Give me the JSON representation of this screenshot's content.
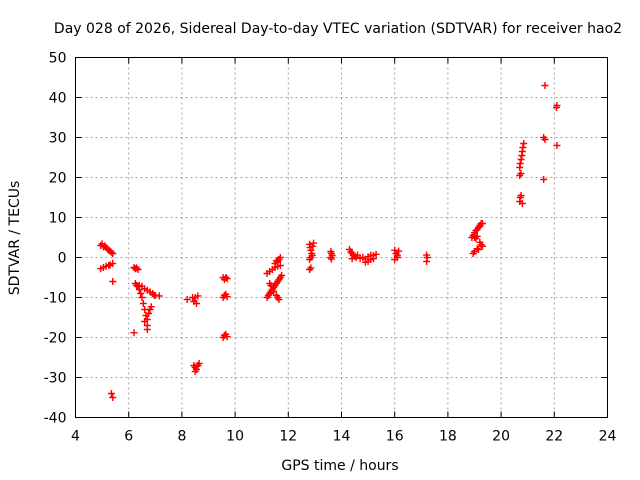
{
  "chart_data": {
    "type": "scatter",
    "title": "Day 028 of 2026, Sidereal Day-to-day VTEC variation (SDTVAR) for receiver hao2",
    "xlabel": "GPS time / hours",
    "ylabel": "SDTVAR / TECUs",
    "xlim": [
      4,
      24
    ],
    "ylim": [
      -40,
      50
    ],
    "x_ticks": [
      4,
      6,
      8,
      10,
      12,
      14,
      16,
      18,
      20,
      22,
      24
    ],
    "y_ticks": [
      -40,
      -30,
      -20,
      -10,
      0,
      10,
      20,
      30,
      40,
      50
    ],
    "x_tick_labels": [
      "4",
      "6",
      "8",
      "10",
      "12",
      "14",
      "16",
      "18",
      "20",
      "22",
      "24"
    ],
    "y_tick_labels": [
      "-40",
      "-30",
      "-20",
      "-10",
      "0",
      "10",
      "20",
      "30",
      "40",
      "50"
    ],
    "grid": true,
    "marker": "+",
    "color": "#ff0000",
    "series": [
      {
        "name": "SDTVAR",
        "points": [
          [
            4.95,
            3.0
          ],
          [
            5.0,
            3.4
          ],
          [
            5.05,
            2.7
          ],
          [
            5.1,
            2.9
          ],
          [
            5.15,
            2.5
          ],
          [
            5.2,
            2.1
          ],
          [
            5.25,
            1.8
          ],
          [
            5.3,
            1.6
          ],
          [
            5.35,
            1.3
          ],
          [
            5.4,
            1.0
          ],
          [
            4.95,
            -2.8
          ],
          [
            5.05,
            -2.5
          ],
          [
            5.15,
            -2.2
          ],
          [
            5.25,
            -2.0
          ],
          [
            5.3,
            -1.8
          ],
          [
            5.4,
            -1.5
          ],
          [
            5.4,
            -6.0
          ],
          [
            5.35,
            -34.0
          ],
          [
            5.4,
            -35.0
          ],
          [
            6.2,
            -2.5
          ],
          [
            6.25,
            -2.8
          ],
          [
            6.3,
            -2.6
          ],
          [
            6.35,
            -3.0
          ],
          [
            6.25,
            -6.5
          ],
          [
            6.3,
            -7.0
          ],
          [
            6.35,
            -7.3
          ],
          [
            6.4,
            -8.0
          ],
          [
            6.45,
            -9.0
          ],
          [
            6.5,
            -10.0
          ],
          [
            6.55,
            -11.5
          ],
          [
            6.6,
            -13.0
          ],
          [
            6.65,
            -14.5
          ],
          [
            6.7,
            -15.5
          ],
          [
            6.7,
            -17.0
          ],
          [
            6.6,
            -16.0
          ],
          [
            6.4,
            -7.0
          ],
          [
            6.5,
            -7.2
          ],
          [
            6.6,
            -7.8
          ],
          [
            6.7,
            -8.2
          ],
          [
            6.8,
            -8.6
          ],
          [
            6.9,
            -9.0
          ],
          [
            6.95,
            -9.4
          ],
          [
            7.0,
            -9.5
          ],
          [
            6.75,
            -14.0
          ],
          [
            6.8,
            -13.0
          ],
          [
            6.85,
            -12.3
          ],
          [
            7.15,
            -9.6
          ],
          [
            6.2,
            -18.8
          ],
          [
            6.7,
            -18.0
          ],
          [
            8.2,
            -10.5
          ],
          [
            8.4,
            -10.0
          ],
          [
            8.45,
            -11.0
          ],
          [
            8.5,
            -10.0
          ],
          [
            8.55,
            -11.5
          ],
          [
            8.6,
            -9.6
          ],
          [
            8.45,
            -27.0
          ],
          [
            8.5,
            -27.5
          ],
          [
            8.55,
            -28.0
          ],
          [
            8.6,
            -27.0
          ],
          [
            8.65,
            -26.5
          ],
          [
            8.5,
            -28.5
          ],
          [
            9.55,
            -5.0
          ],
          [
            9.6,
            -5.5
          ],
          [
            9.65,
            -5.0
          ],
          [
            9.7,
            -5.3
          ],
          [
            9.55,
            -10.0
          ],
          [
            9.6,
            -9.5
          ],
          [
            9.65,
            -9.2
          ],
          [
            9.7,
            -9.8
          ],
          [
            9.6,
            -19.5
          ],
          [
            9.65,
            -19.2
          ],
          [
            9.7,
            -19.8
          ],
          [
            9.55,
            -20.0
          ],
          [
            11.2,
            -10.0
          ],
          [
            11.25,
            -9.5
          ],
          [
            11.3,
            -9.0
          ],
          [
            11.35,
            -8.5
          ],
          [
            11.4,
            -8.0
          ],
          [
            11.45,
            -7.5
          ],
          [
            11.5,
            -7.0
          ],
          [
            11.55,
            -6.5
          ],
          [
            11.6,
            -6.0
          ],
          [
            11.65,
            -5.5
          ],
          [
            11.7,
            -5.0
          ],
          [
            11.75,
            -4.5
          ],
          [
            11.3,
            -6.5
          ],
          [
            11.35,
            -7.0
          ],
          [
            11.45,
            -8.5
          ],
          [
            11.55,
            -9.5
          ],
          [
            11.6,
            -10.0
          ],
          [
            11.65,
            -10.5
          ],
          [
            11.2,
            -4.0
          ],
          [
            11.3,
            -3.5
          ],
          [
            11.4,
            -3.0
          ],
          [
            11.5,
            -2.5
          ],
          [
            11.6,
            -2.2
          ],
          [
            11.7,
            -2.0
          ],
          [
            11.5,
            -1.5
          ],
          [
            11.6,
            -1.0
          ],
          [
            11.65,
            -0.5
          ],
          [
            11.7,
            0.0
          ],
          [
            11.55,
            -0.8
          ],
          [
            12.8,
            3.3
          ],
          [
            12.82,
            2.5
          ],
          [
            12.85,
            1.8
          ],
          [
            12.88,
            1.0
          ],
          [
            12.9,
            0.5
          ],
          [
            12.85,
            0.0
          ],
          [
            12.8,
            -0.5
          ],
          [
            12.92,
            2.8
          ],
          [
            12.95,
            3.6
          ],
          [
            12.8,
            -3.0
          ],
          [
            12.85,
            -2.6
          ],
          [
            13.6,
            1.5
          ],
          [
            13.62,
            1.0
          ],
          [
            13.65,
            0.5
          ],
          [
            13.6,
            0.0
          ],
          [
            13.62,
            -0.4
          ],
          [
            14.3,
            2.0
          ],
          [
            14.35,
            1.4
          ],
          [
            14.4,
            1.0
          ],
          [
            14.45,
            0.5
          ],
          [
            14.5,
            0.3
          ],
          [
            14.55,
            0.0
          ],
          [
            14.4,
            -0.3
          ],
          [
            14.6,
            0.6
          ],
          [
            14.7,
            -0.2
          ],
          [
            14.8,
            0.0
          ],
          [
            14.9,
            -0.4
          ],
          [
            15.0,
            0.2
          ],
          [
            15.1,
            -0.5
          ],
          [
            15.2,
            0.5
          ],
          [
            15.3,
            0.8
          ],
          [
            15.0,
            -1.0
          ],
          [
            14.9,
            -1.2
          ],
          [
            15.1,
            0.6
          ],
          [
            15.2,
            -0.3
          ],
          [
            16.0,
            1.8
          ],
          [
            16.05,
            1.0
          ],
          [
            16.1,
            0.5
          ],
          [
            16.15,
            1.6
          ],
          [
            16.1,
            0.0
          ],
          [
            16.0,
            -0.5
          ],
          [
            17.2,
            0.6
          ],
          [
            17.22,
            0.0
          ],
          [
            17.2,
            -1.0
          ],
          [
            18.9,
            5.0
          ],
          [
            18.95,
            5.5
          ],
          [
            19.0,
            6.2
          ],
          [
            19.05,
            6.7
          ],
          [
            19.1,
            7.0
          ],
          [
            19.15,
            7.5
          ],
          [
            19.2,
            8.0
          ],
          [
            19.25,
            8.5
          ],
          [
            19.3,
            8.5
          ],
          [
            19.0,
            5.0
          ],
          [
            19.05,
            4.8
          ],
          [
            19.1,
            5.3
          ],
          [
            19.2,
            3.8
          ],
          [
            19.25,
            3.2
          ],
          [
            19.3,
            2.8
          ],
          [
            19.1,
            2.2
          ],
          [
            19.0,
            1.5
          ],
          [
            18.95,
            1.0
          ],
          [
            19.15,
            2.0
          ],
          [
            20.7,
            14.0
          ],
          [
            20.72,
            15.0
          ],
          [
            20.75,
            15.5
          ],
          [
            20.8,
            13.5
          ],
          [
            20.7,
            20.5
          ],
          [
            20.75,
            21.0
          ],
          [
            20.7,
            22.5
          ],
          [
            20.72,
            23.5
          ],
          [
            20.75,
            24.5
          ],
          [
            20.78,
            25.5
          ],
          [
            20.8,
            26.5
          ],
          [
            20.82,
            27.5
          ],
          [
            20.85,
            28.5
          ],
          [
            21.6,
            19.5
          ],
          [
            21.65,
            29.5
          ],
          [
            21.6,
            30.0
          ],
          [
            21.65,
            43.0
          ],
          [
            22.1,
            28.0
          ],
          [
            22.08,
            37.5
          ],
          [
            22.1,
            38.0
          ]
        ]
      }
    ]
  }
}
